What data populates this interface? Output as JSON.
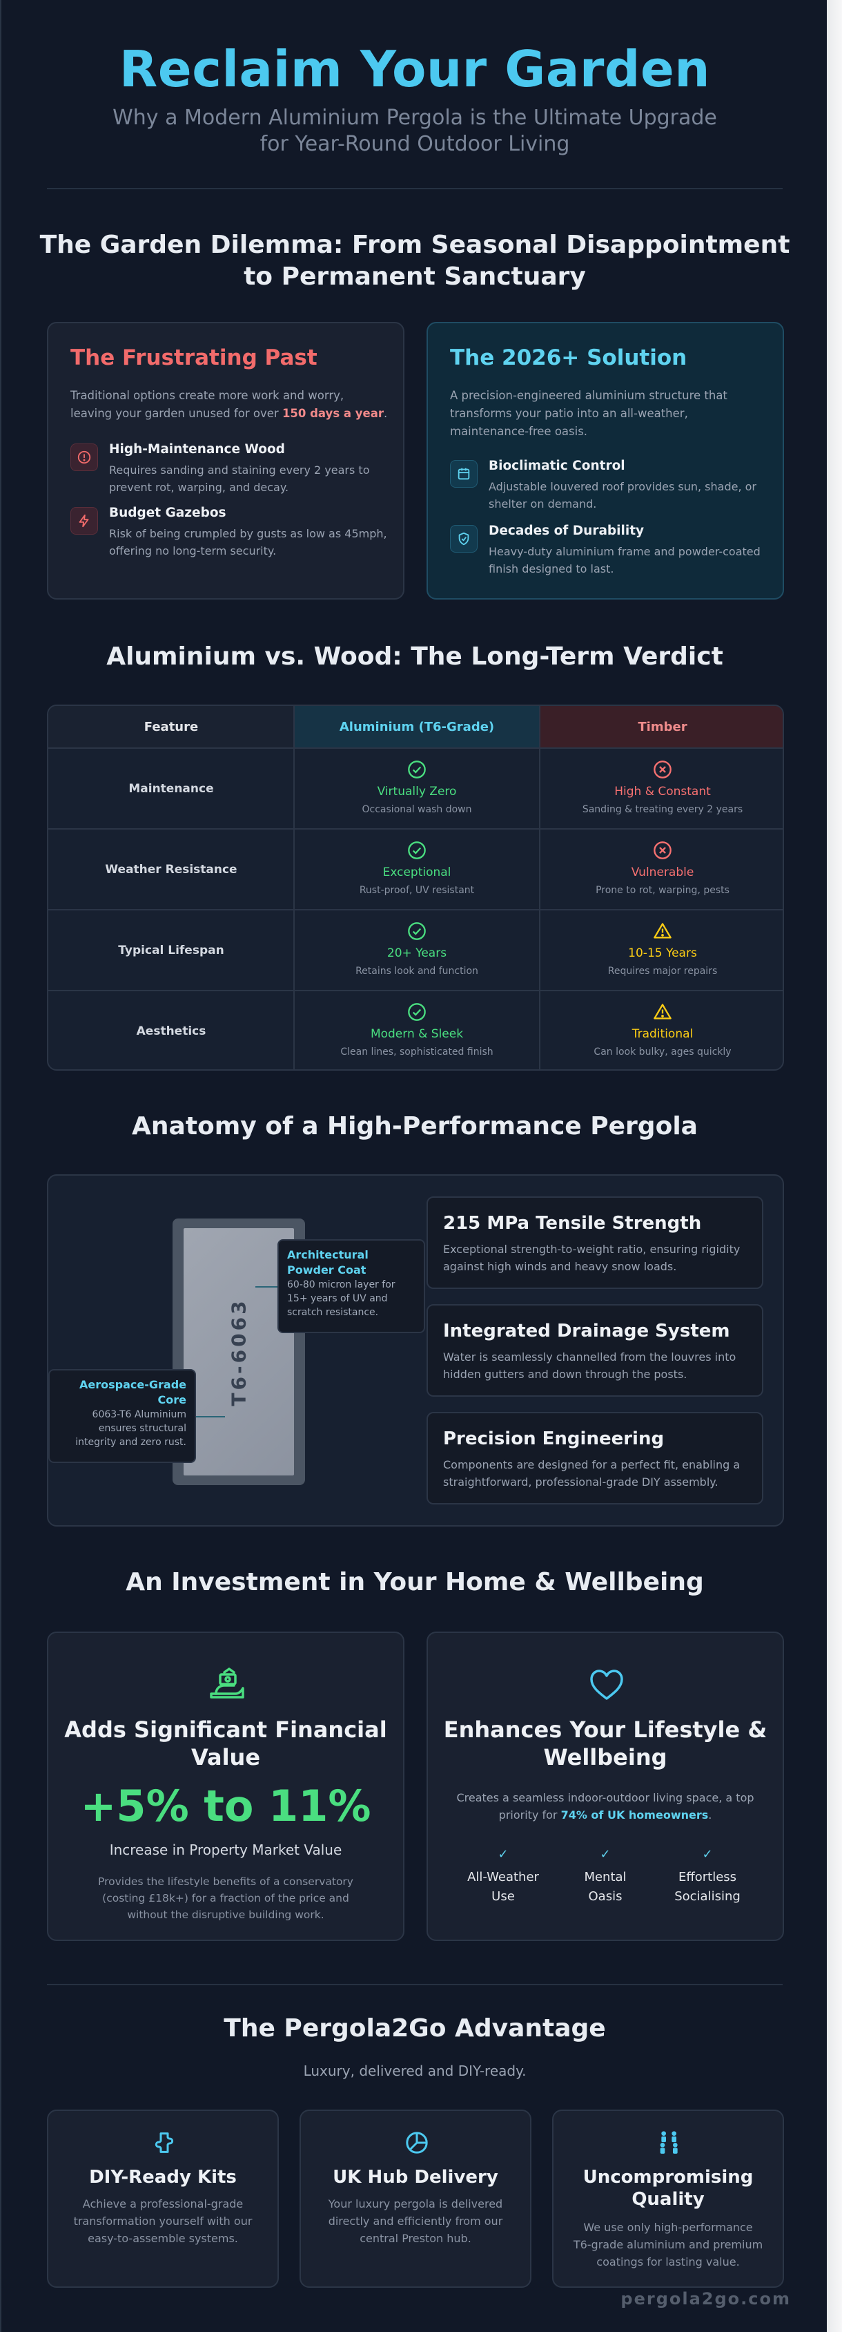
{
  "hero": {
    "title": "Reclaim Your Garden",
    "subtitle_line1": "Why a Modern Aluminium Pergola is the Ultimate Upgrade",
    "subtitle_line2": "for Year-Round Outdoor Living"
  },
  "dilemma": {
    "title_line1": "The Garden Dilemma: From Seasonal Disappointment",
    "title_line2": "to Permanent Sanctuary",
    "past": {
      "heading": "The Frustrating Past",
      "intro_before": "Traditional options create more work and worry, leaving your garden unused for over ",
      "intro_highlight": "150 days a year",
      "intro_after": ".",
      "items": [
        {
          "icon": "alert-circle-icon",
          "title": "High-Maintenance Wood",
          "desc": "Requires sanding and staining every 2 years to prevent rot, warping, and decay."
        },
        {
          "icon": "lightning-icon",
          "title": "Budget Gazebos",
          "desc": "Risk of being crumpled by gusts as low as 45mph, offering no long-term security."
        }
      ]
    },
    "solution": {
      "heading": "The 2026+ Solution",
      "intro": "A precision-engineered aluminium structure that transforms your patio into an all-weather, maintenance-free oasis.",
      "items": [
        {
          "icon": "calendar-icon",
          "title": "Bioclimatic Control",
          "desc": "Adjustable louvered roof provides sun, shade, or shelter on demand."
        },
        {
          "icon": "shield-check-icon",
          "title": "Decades of Durability",
          "desc": "Heavy-duty aluminium frame and powder-coated finish designed to last."
        }
      ]
    }
  },
  "comparison": {
    "title": "Aluminium vs. Wood: The Long-Term Verdict",
    "headers": [
      "Feature",
      "Aluminium (T6-Grade)",
      "Timber"
    ],
    "rows": [
      {
        "feature": "Maintenance",
        "alu": {
          "status": "good",
          "text": "Virtually Zero",
          "sub": "Occasional wash down"
        },
        "wood": {
          "status": "bad",
          "text": "High & Constant",
          "sub": "Sanding & treating every 2 years"
        }
      },
      {
        "feature": "Weather Resistance",
        "alu": {
          "status": "good",
          "text": "Exceptional",
          "sub": "Rust-proof, UV resistant"
        },
        "wood": {
          "status": "bad",
          "text": "Vulnerable",
          "sub": "Prone to rot, warping, pests"
        }
      },
      {
        "feature": "Typical Lifespan",
        "alu": {
          "status": "good",
          "text": "20+ Years",
          "sub": "Retains look and function"
        },
        "wood": {
          "status": "warn",
          "text": "10-15 Years",
          "sub": "Requires major repairs"
        }
      },
      {
        "feature": "Aesthetics",
        "alu": {
          "status": "good",
          "text": "Modern & Sleek",
          "sub": "Clean lines, sophisticated finish"
        },
        "wood": {
          "status": "warn",
          "text": "Traditional",
          "sub": "Can look bulky, ages quickly"
        }
      }
    ]
  },
  "anatomy": {
    "title": "Anatomy of a High-Performance Pergola",
    "post_label": "T6-6063",
    "callouts": [
      {
        "title": "Architectural Powder Coat",
        "desc": "60-80 micron layer for 15+ years of UV and scratch resistance."
      },
      {
        "title": "Aerospace-Grade Core",
        "desc": "6063-T6 Aluminium ensures structural integrity and zero rust."
      }
    ],
    "specs": [
      {
        "title": "215 MPa Tensile Strength",
        "desc": "Exceptional strength-to-weight ratio, ensuring rigidity against high winds and heavy snow loads."
      },
      {
        "title": "Integrated Drainage System",
        "desc": "Water is seamlessly channelled from the louvres into hidden gutters and down through the posts."
      },
      {
        "title": "Precision Engineering",
        "desc": "Components are designed for a perfect fit, enabling a straightforward, professional-grade DIY assembly."
      }
    ]
  },
  "investment": {
    "title": "An Investment in Your Home & Wellbeing",
    "financial": {
      "heading_line1": "Adds Significant Financial",
      "heading_line2": "Value",
      "big_stat": "+5% to 11%",
      "big_label": "Increase in Property Market Value",
      "note": "Provides the lifestyle benefits of a conservatory (costing £18k+) for a fraction of the price and without the disruptive building work."
    },
    "lifestyle": {
      "heading_line1": "Enhances Your Lifestyle &",
      "heading_line2": "Wellbeing",
      "desc_before": "Creates a seamless indoor-outdoor living space, a top priority for ",
      "desc_highlight": "74% of UK homeowners",
      "desc_after": ".",
      "perks": [
        {
          "line1": "All-Weather",
          "line2": "Use"
        },
        {
          "line1": "Mental",
          "line2": "Oasis"
        },
        {
          "line1": "Effortless",
          "line2": "Socialising"
        }
      ],
      "check_glyph": "✓"
    }
  },
  "advantage": {
    "title": "The Pergola2Go Advantage",
    "subtitle": "Luxury, delivered and DIY-ready.",
    "cards": [
      {
        "icon": "puzzle-icon",
        "title_line1": "DIY-Ready Kits",
        "title_line2": "",
        "desc": "Achieve a professional-grade transformation yourself with our easy-to-assemble systems."
      },
      {
        "icon": "pie-chart-icon",
        "title_line1": "UK Hub Delivery",
        "title_line2": "",
        "desc": "Your luxury pergola is delivered directly and efficiently from our central Preston hub."
      },
      {
        "icon": "quality-people-icon",
        "title_line1": "Uncompromising",
        "title_line2": "Quality",
        "desc": "We use only high-performance T6-grade aluminium and premium coatings for lasting value."
      }
    ]
  },
  "footer": {
    "brand": "pergola2go.com"
  },
  "colors": {
    "accent": "#4cc9f0",
    "good": "#4ade80",
    "bad": "#f87171",
    "warn": "#facc15",
    "background": "#111827"
  }
}
